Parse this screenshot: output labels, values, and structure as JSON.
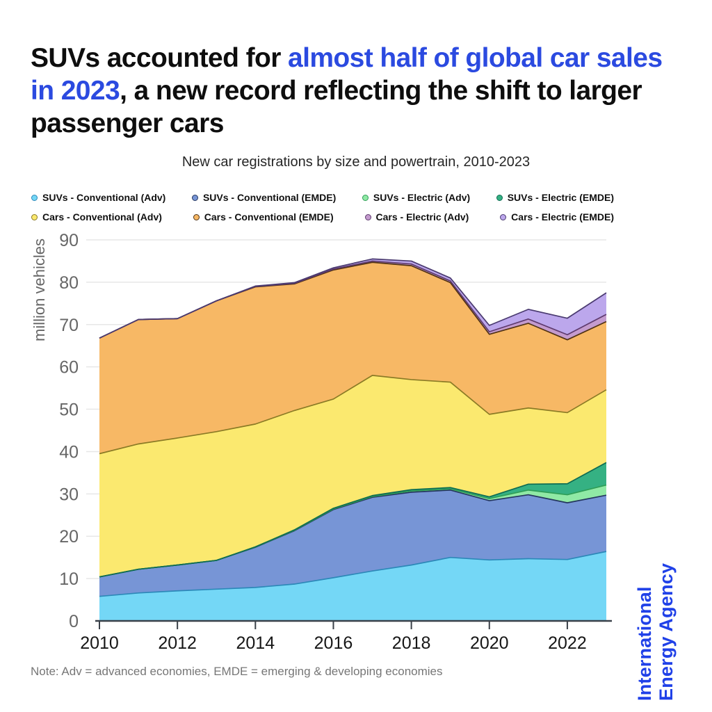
{
  "title": {
    "part1": "SUVs accounted for ",
    "highlight": "almost half of global car sales in 2023",
    "part2": ", a new record reflecting the shift to larger passenger cars",
    "highlight_color": "#2B4AE0"
  },
  "subtitle": "New car registrations by size and powertrain, 2010-2023",
  "footer": {
    "note": "Note: Adv = advanced economies, EMDE = emerging & developing economies"
  },
  "logo": {
    "line1": "International",
    "line2": "Energy Agency",
    "color": "#2041E8"
  },
  "chart_data": {
    "type": "area",
    "stacked": true,
    "title": "New car registrations by size and powertrain, 2010-2023",
    "xlabel": "",
    "ylabel": "million vehicles",
    "ylim": [
      0,
      90
    ],
    "y_ticks": [
      0,
      10,
      20,
      30,
      40,
      50,
      60,
      70,
      80,
      90
    ],
    "x_ticks": [
      2010,
      2012,
      2014,
      2016,
      2018,
      2020,
      2022
    ],
    "grid": true,
    "legend_position": "top",
    "x": [
      2010,
      2011,
      2012,
      2013,
      2014,
      2015,
      2016,
      2017,
      2018,
      2019,
      2020,
      2021,
      2022,
      2023
    ],
    "series": [
      {
        "name": "SUVs - Conventional (Adv)",
        "fill": "#74D7F6",
        "stroke": "#2C88B8",
        "values": [
          5.8,
          6.6,
          7.1,
          7.5,
          7.9,
          8.7,
          10.2,
          11.8,
          13.2,
          15.0,
          14.4,
          14.7,
          14.5,
          16.4
        ]
      },
      {
        "name": "SUVs - Conventional (EMDE)",
        "fill": "#7795D6",
        "stroke": "#24365E",
        "values": [
          4.6,
          5.6,
          6.1,
          6.8,
          9.5,
          12.6,
          16.1,
          17.4,
          17.2,
          15.9,
          14.0,
          15.1,
          13.4,
          13.3
        ]
      },
      {
        "name": "SUVs - Electric (Adv)",
        "fill": "#90E9A5",
        "stroke": "#2F9E57",
        "values": [
          0,
          0,
          0,
          0,
          0.05,
          0.1,
          0.15,
          0.2,
          0.3,
          0.3,
          0.5,
          1.1,
          1.9,
          2.4
        ]
      },
      {
        "name": "SUVs - Electric (EMDE)",
        "fill": "#35B183",
        "stroke": "#0D6B52",
        "values": [
          0,
          0,
          0,
          0,
          0.05,
          0.1,
          0.15,
          0.2,
          0.3,
          0.3,
          0.4,
          1.4,
          2.6,
          5.3
        ]
      },
      {
        "name": "Cars - Conventional (Adv)",
        "fill": "#FBE96F",
        "stroke": "#8A7A25",
        "values": [
          29.1,
          29.6,
          30.0,
          30.4,
          29.0,
          28.2,
          25.8,
          28.4,
          26.0,
          24.9,
          19.5,
          18.0,
          16.8,
          17.2
        ]
      },
      {
        "name": "Cars - Conventional (EMDE)",
        "fill": "#F7B865",
        "stroke": "#503214",
        "values": [
          27.3,
          29.4,
          28.2,
          30.9,
          32.4,
          29.9,
          30.5,
          26.7,
          26.9,
          23.5,
          18.9,
          20.0,
          17.2,
          16.1
        ]
      },
      {
        "name": "Cars - Electric (Adv)",
        "fill": "#C49BCE",
        "stroke": "#5E3A6E",
        "values": [
          0,
          0,
          0,
          0,
          0.1,
          0.15,
          0.2,
          0.3,
          0.4,
          0.4,
          0.6,
          1.0,
          1.2,
          1.7
        ]
      },
      {
        "name": "Cars - Electric (EMDE)",
        "fill": "#BCA7EC",
        "stroke": "#4A3A70",
        "values": [
          0,
          0,
          0,
          0,
          0.1,
          0.15,
          0.3,
          0.5,
          0.7,
          0.7,
          1.5,
          2.3,
          3.9,
          5.1
        ]
      }
    ],
    "legend_rows": [
      [
        0,
        1,
        2,
        3
      ],
      [
        4,
        5,
        6,
        7
      ]
    ],
    "axis_colors": {
      "grid": "#E7E7E7",
      "axis_line": "#3A4149",
      "y_tick_label": "#666666",
      "x_tick_label": "#161616",
      "y_axis_title": "#666666"
    }
  }
}
